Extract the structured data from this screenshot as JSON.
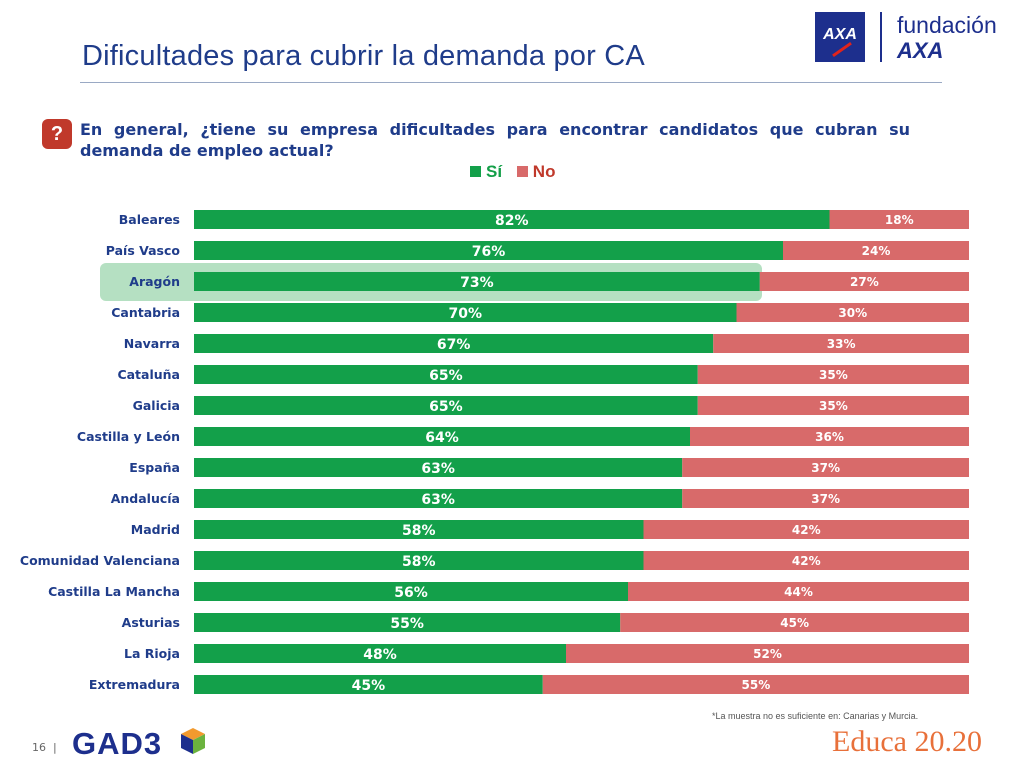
{
  "header": {
    "title": "Dificultades para cubrir la demanda por CA",
    "logo_axa": "AXA",
    "logo_fundacion_line1": "fundación",
    "logo_fundacion_line2": "AXA"
  },
  "question": {
    "icon": "?",
    "text": "En general, ¿tiene su empresa dificultades para encontrar candidatos que cubran su demanda de empleo actual?"
  },
  "legend": {
    "si_label": "Sí",
    "no_label": "No"
  },
  "colors": {
    "si": "#13a04a",
    "no": "#d86a6a",
    "highlight": "#a8dbb7",
    "title": "#1f3c8a"
  },
  "chart_data": {
    "type": "bar",
    "orientation": "horizontal",
    "stacked": true,
    "categories": [
      "Baleares",
      "País Vasco",
      "Aragón",
      "Cantabria",
      "Navarra",
      "Cataluña",
      "Galicia",
      "Castilla y León",
      "España",
      "Andalucía",
      "Madrid",
      "Comunidad Valenciana",
      "Castilla La Mancha",
      "Asturias",
      "La Rioja",
      "Extremadura"
    ],
    "series": [
      {
        "name": "Sí",
        "values": [
          82,
          76,
          73,
          70,
          67,
          65,
          65,
          64,
          63,
          63,
          58,
          58,
          56,
          55,
          48,
          45
        ]
      },
      {
        "name": "No",
        "values": [
          18,
          24,
          27,
          30,
          33,
          35,
          35,
          36,
          37,
          37,
          42,
          42,
          44,
          45,
          52,
          55
        ]
      }
    ],
    "value_suffix": "%",
    "highlighted_category": "Aragón",
    "xlim": [
      0,
      100
    ],
    "legend_position": "top"
  },
  "footer": {
    "note": "*La  muestra  no es suficiente en: Canarias y Murcia.",
    "page_number": "16",
    "separator": "|",
    "gad3_logo": "GAD3",
    "educa_logo": "Educa 20.20"
  }
}
